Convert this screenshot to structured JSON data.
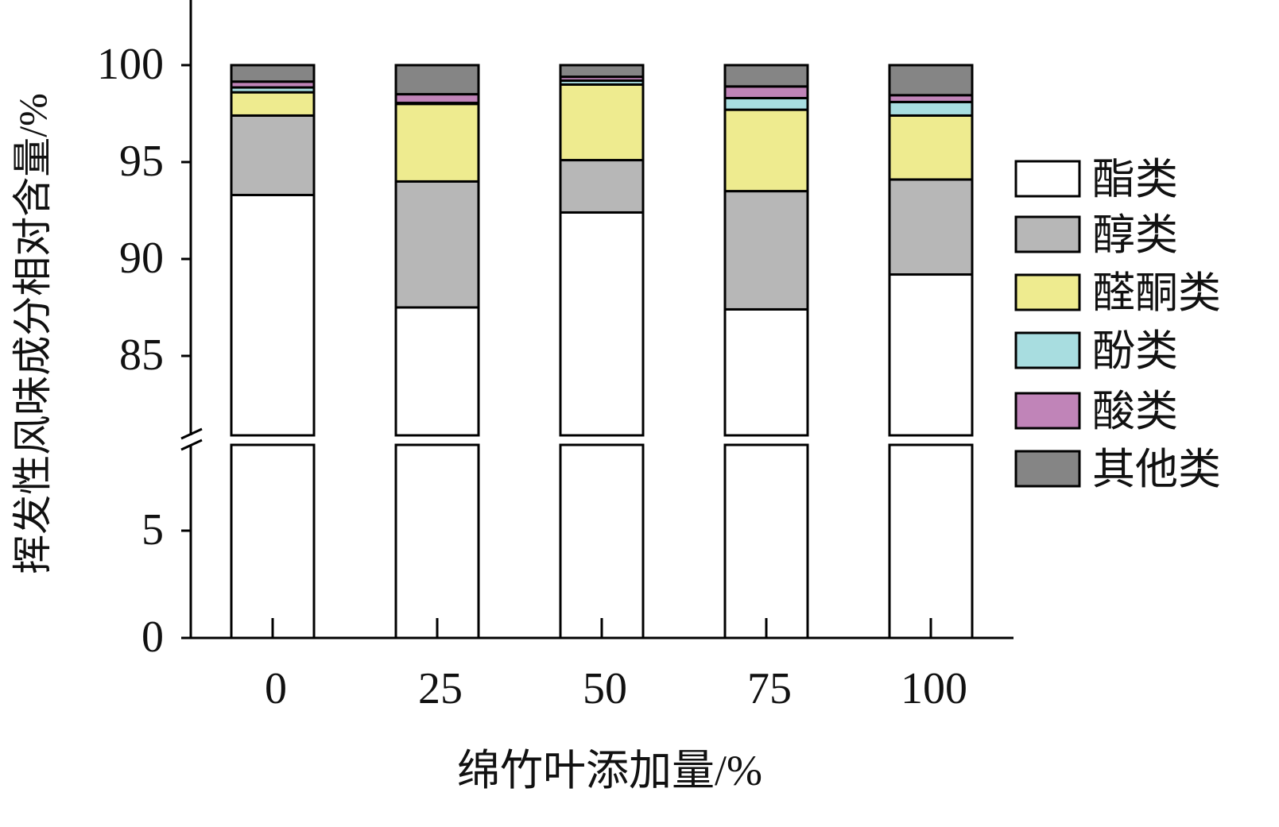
{
  "chart_data": {
    "type": "bar",
    "stacked": true,
    "title": "",
    "xlabel": "绵竹叶添加量/%",
    "ylabel": "挥发性风味成分相对含量/%",
    "categories": [
      "0",
      "25",
      "50",
      "75",
      "100"
    ],
    "y_break": [
      9,
      81
    ],
    "ylim": [
      0,
      100
    ],
    "yticks_lower": [
      "0",
      "5"
    ],
    "yticks_upper": [
      "85",
      "90",
      "95",
      "100"
    ],
    "legend_position": "right",
    "series": [
      {
        "name": "酯类",
        "color": "#ffffff",
        "values": [
          93.3,
          87.5,
          92.4,
          87.4,
          89.2
        ]
      },
      {
        "name": "醇类",
        "color": "#b7b7b7",
        "values": [
          4.1,
          6.5,
          2.7,
          6.1,
          4.9
        ]
      },
      {
        "name": "醛酮类",
        "color": "#eeeb8f",
        "values": [
          1.2,
          4.0,
          3.9,
          4.2,
          3.3
        ]
      },
      {
        "name": "酚类",
        "color": "#a8dde0",
        "values": [
          0.25,
          0.05,
          0.2,
          0.6,
          0.7
        ]
      },
      {
        "name": "酸类",
        "color": "#c084b8",
        "values": [
          0.3,
          0.45,
          0.2,
          0.6,
          0.35
        ]
      },
      {
        "name": "其他类",
        "color": "#858585",
        "values": [
          0.85,
          1.5,
          0.6,
          1.1,
          1.55
        ]
      }
    ]
  }
}
